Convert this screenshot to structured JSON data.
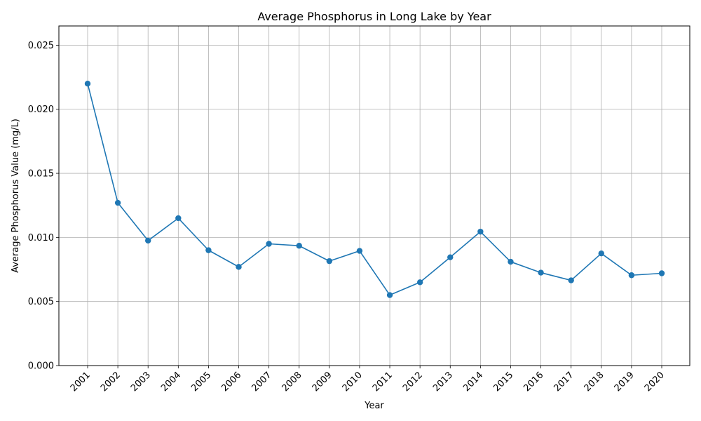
{
  "chart_data": {
    "type": "line",
    "title": "Average Phosphorus in Long Lake by Year",
    "xlabel": "Year",
    "ylabel": "Average Phosphorus Value (mg/L)",
    "categories": [
      "2001",
      "2002",
      "2003",
      "2004",
      "2005",
      "2006",
      "2007",
      "2008",
      "2009",
      "2010",
      "2011",
      "2012",
      "2013",
      "2014",
      "2015",
      "2016",
      "2017",
      "2018",
      "2019",
      "2020"
    ],
    "series": [
      {
        "values": [
          0.022,
          0.0127,
          0.00975,
          0.0115,
          0.009,
          0.0077,
          0.0095,
          0.00935,
          0.00815,
          0.00895,
          0.0055,
          0.0065,
          0.00845,
          0.01045,
          0.0081,
          0.00725,
          0.00665,
          0.00875,
          0.00705,
          0.0072
        ],
        "color": "#1f77b4",
        "marker": "circle"
      }
    ],
    "ylim": [
      0,
      0.0265
    ],
    "yticks": [
      "0.000",
      "0.005",
      "0.010",
      "0.015",
      "0.020",
      "0.025"
    ],
    "ytick_values": [
      0,
      0.005,
      0.01,
      0.015,
      0.02,
      0.025
    ],
    "grid": true,
    "legend": "none",
    "xtick_rotation": "45 degrees"
  }
}
